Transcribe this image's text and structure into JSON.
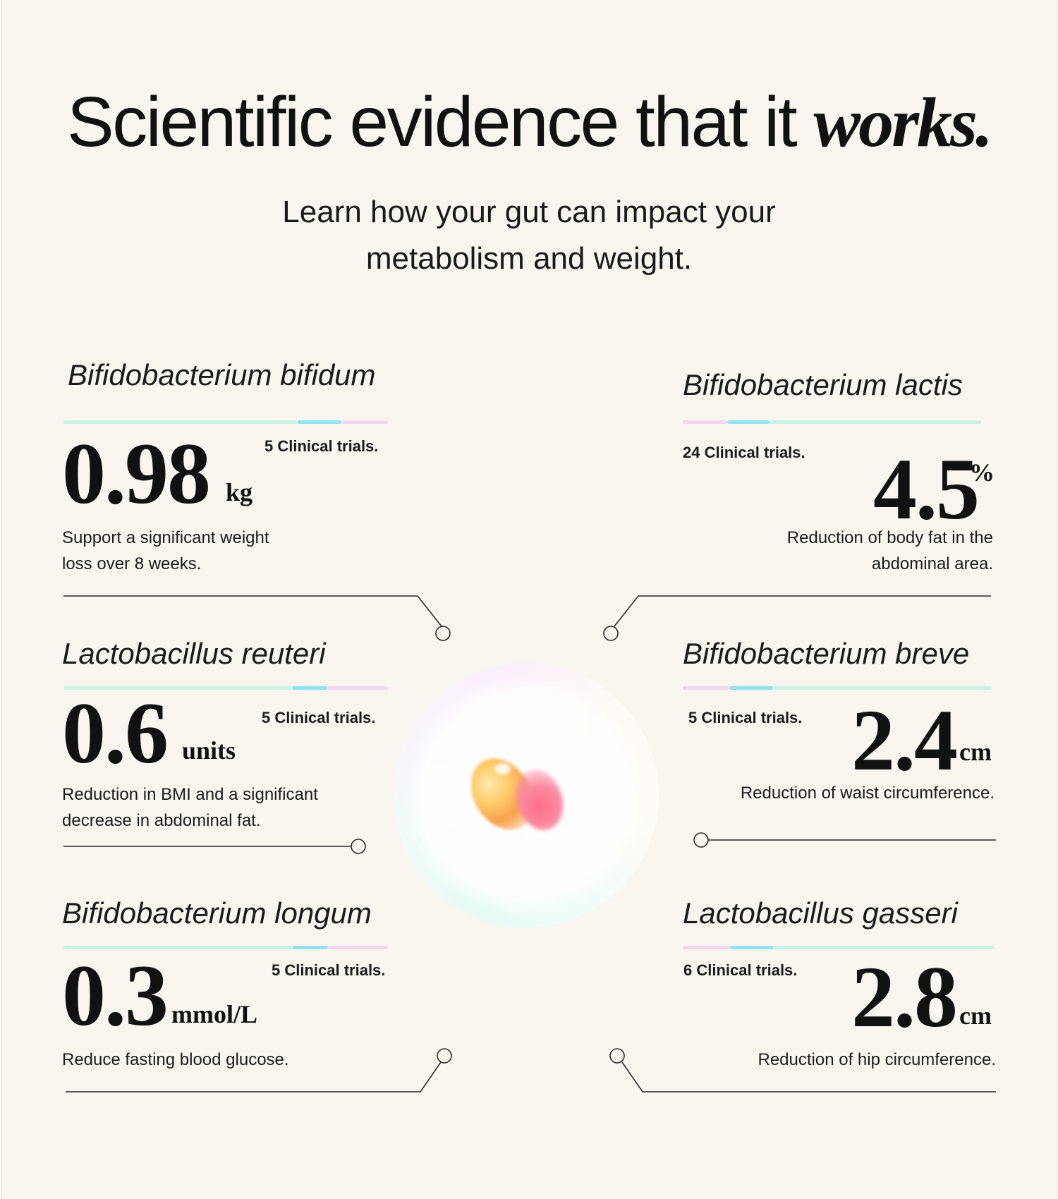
{
  "header": {
    "title_main": "Scientific evidence that it ",
    "title_accent": "works.",
    "subtitle": "Learn how your gut can impact your metabolism and weight."
  },
  "cards": [
    {
      "name": "Bifidobacterium bifidum",
      "trials": "5 Clinical trials.",
      "value": "0.98",
      "unit": "kg",
      "description": "Support a significant weight loss over 8 weeks."
    },
    {
      "name": "Bifidobacterium lactis",
      "trials": "24 Clinical trials.",
      "value": "4.5",
      "unit": "%",
      "description": "Reduction of body fat in the abdominal area."
    },
    {
      "name": "Lactobacillus reuteri",
      "trials": "5 Clinical trials.",
      "value": "0.6",
      "unit": "units",
      "description": "Reduction in BMI and a significant decrease in abdominal fat."
    },
    {
      "name": "Bifidobacterium breve",
      "trials": "5 Clinical trials.",
      "value": "2.4",
      "unit": "cm",
      "description": "Reduction of waist circumference."
    },
    {
      "name": "Bifidobacterium longum",
      "trials": "5 Clinical trials.",
      "value": "0.3",
      "unit": "mmol/L",
      "description": "Reduce fasting blood glucose."
    },
    {
      "name": "Lactobacillus gasseri",
      "trials": "6 Clinical trials.",
      "value": "2.8",
      "unit": "cm",
      "description": "Reduction of hip circumference."
    }
  ],
  "colors": {
    "background": "#f9f5ef",
    "text": "#141414",
    "bar_mint": "#c8f3e4",
    "bar_cyan": "#8fe3f2",
    "bar_pink": "#f2d6f3",
    "connector": "#2a2a2a"
  },
  "icons": {
    "center": "probiotic-capsule-orb"
  }
}
